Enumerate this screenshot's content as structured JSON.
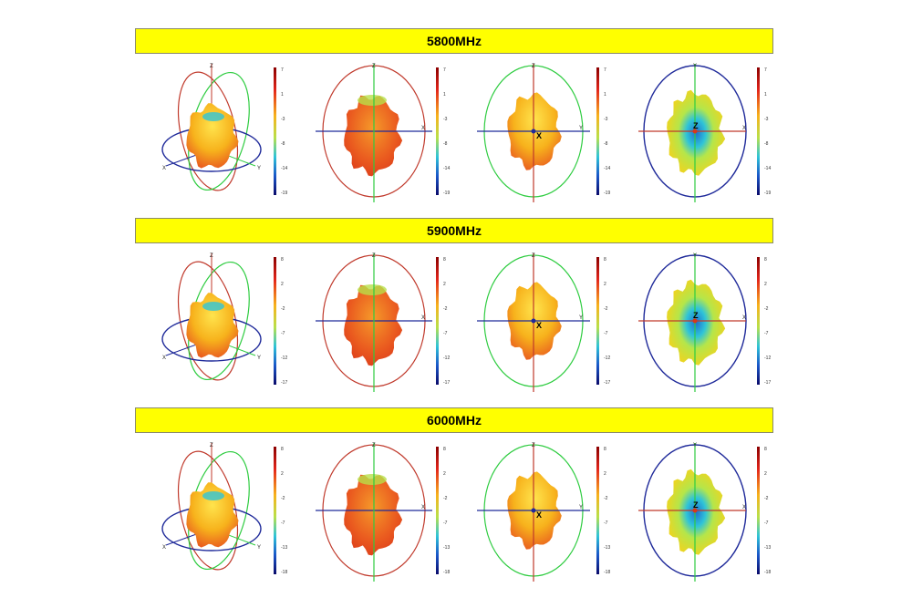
{
  "rows": [
    {
      "freq_label": "5800MHz",
      "scale_ticks": [
        "7",
        "1",
        "-3",
        "-8",
        "-14",
        "-19"
      ]
    },
    {
      "freq_label": "5900MHz",
      "scale_ticks": [
        "8",
        "2",
        "-2",
        "-7",
        "-12",
        "-17"
      ]
    },
    {
      "freq_label": "6000MHz",
      "scale_ticks": [
        "8",
        "2",
        "-2",
        "-7",
        "-13",
        "-18"
      ]
    }
  ],
  "views": [
    {
      "name": "isometric",
      "axes": [
        "Z",
        "X",
        "Y"
      ]
    },
    {
      "name": "front-xz",
      "axes": [
        "Z",
        "X"
      ]
    },
    {
      "name": "side-yz",
      "axes": [
        "Z",
        "Y",
        "X"
      ]
    },
    {
      "name": "top-xy",
      "axes": [
        "Y",
        "X",
        "Z"
      ]
    }
  ],
  "colors": {
    "band": "#ffff00",
    "circle_red": "#c0392b",
    "circle_green": "#2ecc40",
    "circle_blue": "#1f2a9a",
    "pattern_hot": "#e8541f",
    "pattern_warm": "#f7b21c",
    "pattern_cool": "#2fc4d8"
  }
}
